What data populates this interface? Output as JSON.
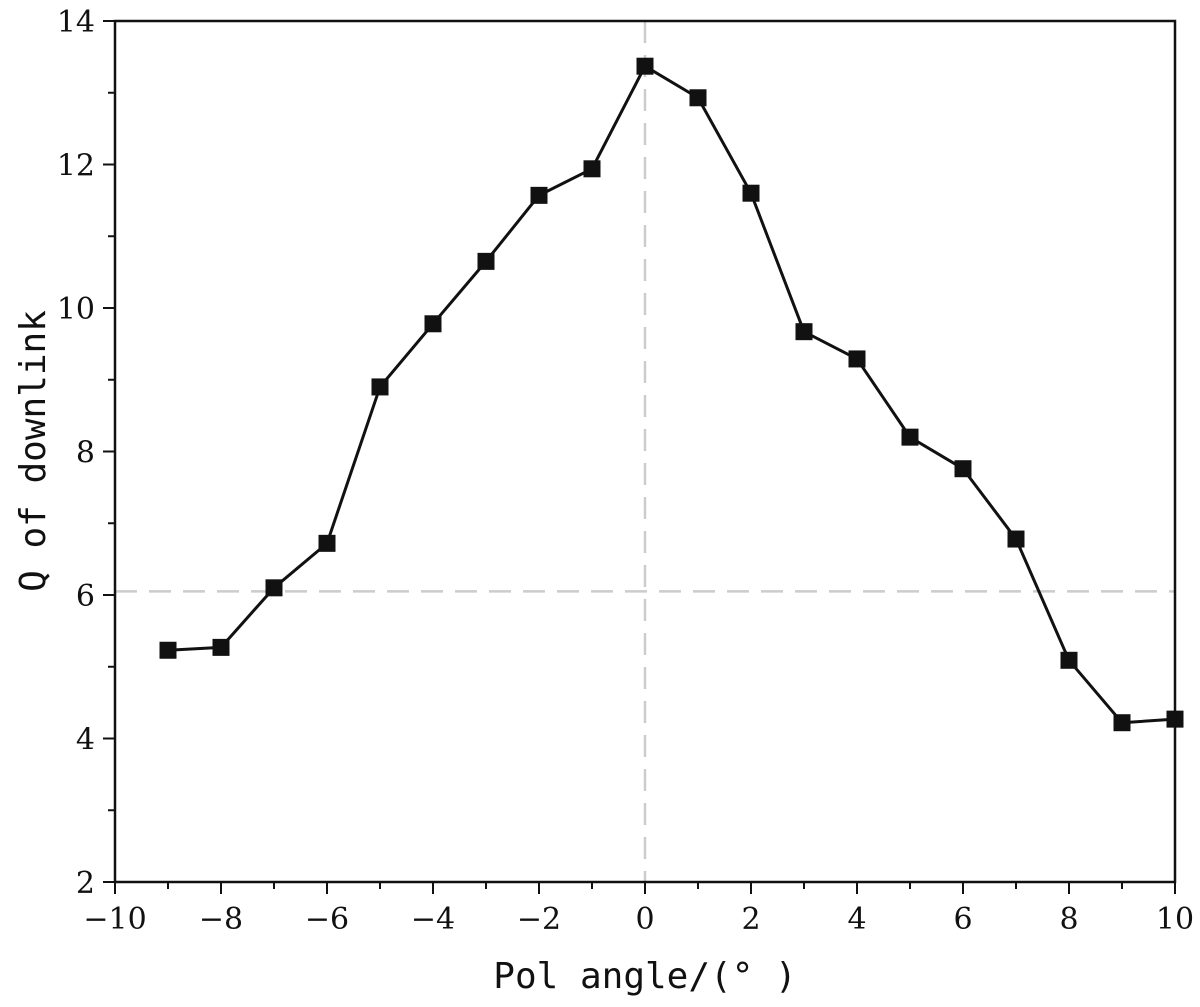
{
  "chart_data": {
    "type": "line",
    "title": "",
    "xlabel": "Pol angle/(° )",
    "ylabel": "Q of downlink",
    "xlim": [
      -10,
      10
    ],
    "ylim": [
      2,
      14
    ],
    "x_ticks": [
      -10,
      -8,
      -6,
      -4,
      -2,
      0,
      2,
      4,
      6,
      8,
      10
    ],
    "x_tick_labels": [
      "−10",
      "−8",
      "−6",
      "−4",
      "−2",
      "0",
      "2",
      "4",
      "6",
      "8",
      "10"
    ],
    "y_ticks": [
      2,
      4,
      6,
      8,
      10,
      12,
      14
    ],
    "y_tick_labels": [
      "2",
      "4",
      "6",
      "8",
      "10",
      "12",
      "14"
    ],
    "grid": false,
    "reference_lines": {
      "horizontal_y": 6.05,
      "vertical_x": 0,
      "color": "#cccccc",
      "style": "dashed"
    },
    "series": [
      {
        "marker": "square",
        "color": "#111111",
        "x": [
          -9,
          -8,
          -7,
          -6,
          -5,
          -4,
          -3,
          -2,
          -1,
          0,
          1,
          2,
          3,
          4,
          5,
          6,
          7,
          8,
          9,
          10
        ],
        "y": [
          5.23,
          5.27,
          6.1,
          6.72,
          8.9,
          9.78,
          10.65,
          11.57,
          11.94,
          13.37,
          12.93,
          11.6,
          9.67,
          9.29,
          8.2,
          7.76,
          6.78,
          5.09,
          4.22,
          4.27
        ]
      }
    ]
  }
}
